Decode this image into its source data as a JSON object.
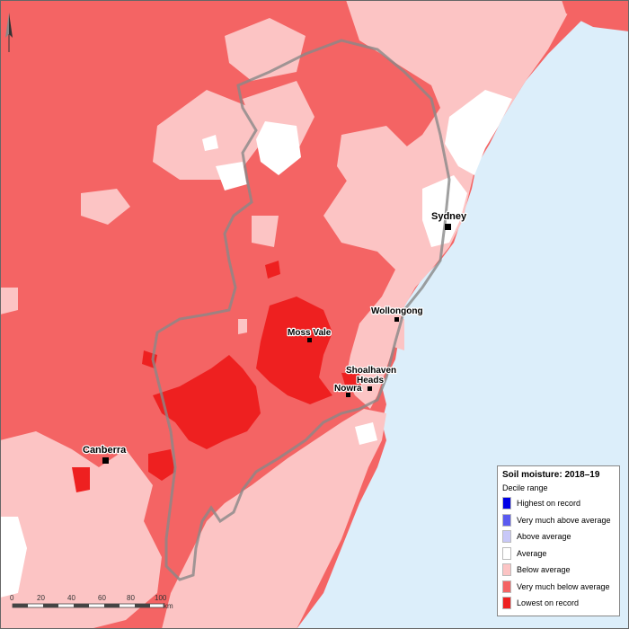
{
  "legend": {
    "title": "Soil moisture: 2018–19",
    "subtitle": "Decile range",
    "items": [
      {
        "label": "Highest on record",
        "color": "#0000e6"
      },
      {
        "label": "Very much above average",
        "color": "#5a5af0"
      },
      {
        "label": "Above average",
        "color": "#c8c8f8"
      },
      {
        "label": "Average",
        "color": "#ffffff"
      },
      {
        "label": "Below average",
        "color": "#fcc4c4"
      },
      {
        "label": "Very much below average",
        "color": "#f46464"
      },
      {
        "label": "Lowest on record",
        "color": "#ee2020"
      }
    ]
  },
  "places": {
    "sydney": "Sydney",
    "wollongong": "Wollongong",
    "moss_vale": "Moss Vale",
    "shoalhaven_1": "Shoalhaven",
    "shoalhaven_2": "Heads",
    "nowra": "Nowra",
    "canberra": "Canberra"
  },
  "scale": {
    "ticks": [
      "0",
      "20",
      "40",
      "60",
      "80",
      "100"
    ],
    "unit": "km"
  },
  "colors": {
    "ocean": "#dceefa",
    "very_much_below": "#f46464",
    "below": "#fcc4c4",
    "lowest": "#ee2020",
    "average": "#ffffff"
  }
}
